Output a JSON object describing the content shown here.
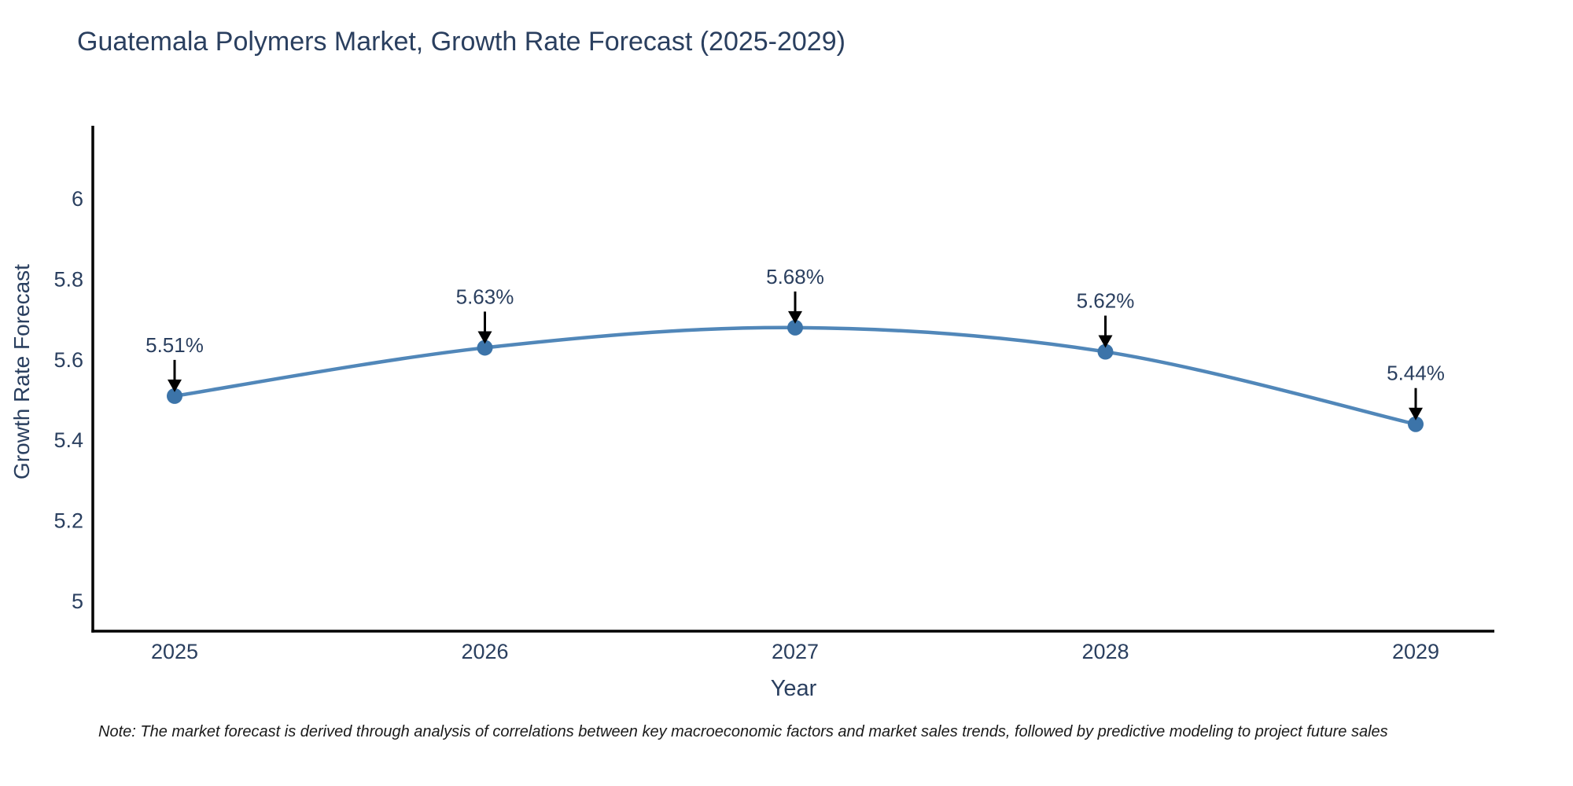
{
  "figure": {
    "note": "Note: The market forecast is derived through analysis of correlations between key macroeconomic factors and market sales trends, followed by predictive modeling to project future sales"
  },
  "chart_data": {
    "type": "line",
    "title": "Guatemala Polymers Market, Growth Rate Forecast (2025-2029)",
    "xlabel": "Year",
    "ylabel": "Growth Rate Forecast",
    "categories": [
      "2025",
      "2026",
      "2027",
      "2028",
      "2029"
    ],
    "series": [
      {
        "name": "Growth Rate Forecast",
        "values": [
          5.51,
          5.63,
          5.68,
          5.62,
          5.44
        ]
      }
    ],
    "point_labels": [
      "5.51%",
      "5.63%",
      "5.68%",
      "5.62%",
      "5.44%"
    ],
    "y_ticks": [
      5,
      5.2,
      5.4,
      5.6,
      5.8,
      6
    ],
    "y_tick_labels": [
      "5",
      "5.2",
      "5.4",
      "5.6",
      "5.8",
      "6"
    ],
    "ylim": [
      4.93,
      6.26
    ],
    "grid": false,
    "line_shape": "spline",
    "legend": "none",
    "colors": {
      "line": "#5187b9",
      "marker": "#3c74a9",
      "axis": "#000000",
      "text": "#2a3f5f",
      "arrow": "#000000",
      "background": "#ffffff"
    }
  }
}
